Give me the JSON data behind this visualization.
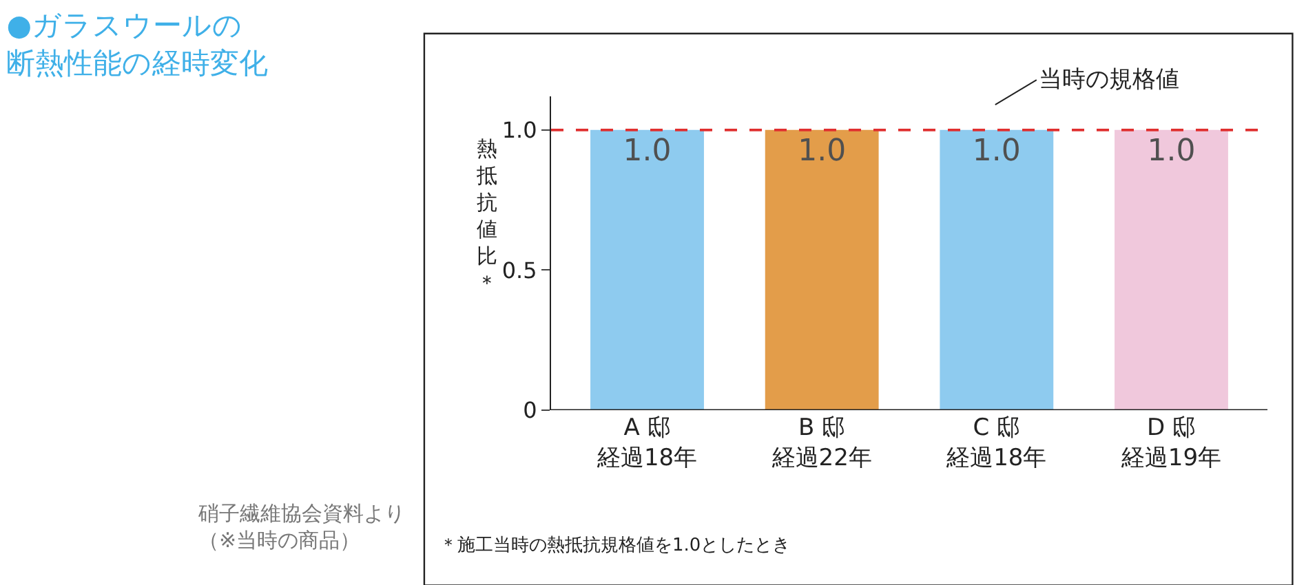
{
  "chart_data": {
    "type": "bar",
    "title": "●ガラスウールの断熱性能の経時変化",
    "ylabel": "熱抵抗値比＊",
    "categories": [
      "A 邸経過18年",
      "B 邸経過22年",
      "C 邸経過18年",
      "D 邸経過19年"
    ],
    "values": [
      1.0,
      1.0,
      1.0,
      1.0
    ],
    "colors": [
      "#8ecbef",
      "#e39d4a",
      "#8ecbef",
      "#f0c8dc"
    ],
    "value_labels": [
      "1.0",
      "1.0",
      "1.0",
      "1.0"
    ],
    "ylim": [
      0,
      1.12
    ],
    "yticks": [
      0,
      0.5,
      {
        "value": 1.0,
        "label": "1.0"
      }
    ],
    "ref_lines": [
      {
        "axis": "y",
        "value": 1.0,
        "label": "当時の規格値",
        "color": "#e03030",
        "line_style": "dashed"
      }
    ],
    "annotations": [
      "硝子繊維協会資料より（※当時の商品）",
      "＊施工当時の熱抵抗規格値を1.0としたとき"
    ],
    "legend": false
  }
}
